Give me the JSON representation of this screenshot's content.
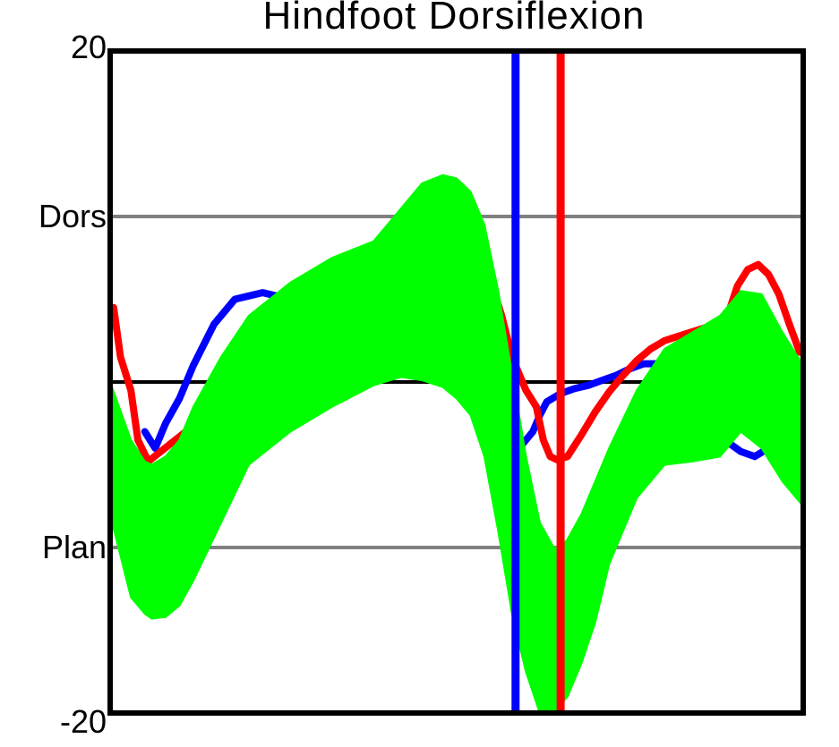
{
  "chart_data": {
    "type": "line",
    "title": "Hindfoot Dorsiflexion",
    "xlabel": "",
    "ylabel": "",
    "xlim": [
      0,
      100
    ],
    "ylim": [
      -20,
      20
    ],
    "y_ticks": [
      {
        "value": 20,
        "label": "20"
      },
      {
        "value": 10,
        "label": "Dors"
      },
      {
        "value": -10,
        "label": "Plan"
      },
      {
        "value": -20,
        "label": "-20"
      }
    ],
    "reference_lines": [
      {
        "y": 10,
        "color": "#808080"
      },
      {
        "y": 0,
        "color": "#000000"
      },
      {
        "y": -10,
        "color": "#808080"
      }
    ],
    "grid": false,
    "legend": "none",
    "colors": {
      "frame": "#000000",
      "series_blue": "#0000ff",
      "series_red": "#ff0000",
      "normal_band": "#00ff00",
      "reference_gray": "#808080"
    },
    "normal_band": {
      "x": [
        0,
        3,
        5,
        6,
        8,
        10,
        12,
        16,
        20,
        26,
        32,
        38,
        42,
        45,
        48,
        50,
        52,
        54,
        56,
        58,
        60,
        62,
        64,
        65,
        66,
        68,
        70,
        72,
        76,
        80,
        84,
        88,
        91,
        94,
        97,
        100
      ],
      "lower": [
        -8.0,
        -13.0,
        -14.0,
        -14.3,
        -14.2,
        -13.5,
        -12.0,
        -8.5,
        -5.0,
        -3.0,
        -1.5,
        -0.2,
        0.3,
        0.1,
        -0.3,
        -1.0,
        -2.0,
        -4.5,
        -9.0,
        -14.0,
        -17.5,
        -20.0,
        -20.0,
        -19.5,
        -19.0,
        -17.0,
        -14.5,
        -11.0,
        -7.0,
        -5.0,
        -4.8,
        -4.5,
        -3.0,
        -4.0,
        -6.0,
        -7.5
      ],
      "upper": [
        0.0,
        -3.5,
        -4.8,
        -5.0,
        -4.5,
        -3.5,
        -1.5,
        1.5,
        4.0,
        6.0,
        7.5,
        8.5,
        10.5,
        12.0,
        12.5,
        12.3,
        11.5,
        9.5,
        5.5,
        0.5,
        -4.5,
        -8.5,
        -10.0,
        -10.0,
        -9.5,
        -8.0,
        -6.0,
        -4.0,
        -0.5,
        2.0,
        3.0,
        4.0,
        5.5,
        5.3,
        3.0,
        1.0
      ]
    },
    "series": [
      {
        "color": "#0000ff",
        "x": [
          5.0,
          6.5,
          8.0,
          10.0,
          12.0,
          15.0,
          17.0,
          18.0,
          20.0,
          22.0,
          24.0,
          26.0,
          30.0,
          34.0,
          38.0,
          42.0,
          46.0,
          50.0,
          52.0,
          54.0,
          55.0,
          57.0,
          59.0,
          61.0,
          62.0,
          63.0,
          65.0,
          67.0,
          69.0,
          71.0,
          73.0,
          75.0,
          77.0,
          79.0,
          81.0,
          83.0,
          85.0,
          87.0,
          89.0,
          91.0,
          93.0,
          95.0,
          97.0,
          99.5
        ],
        "y": [
          -3.0,
          -4.0,
          -2.5,
          -1.0,
          1.0,
          3.5,
          4.5,
          5.0,
          5.2,
          5.4,
          5.2,
          5.0,
          4.8,
          4.3,
          3.8,
          3.3,
          2.8,
          2.4,
          1.8,
          0.5,
          -1.5,
          -3.0,
          -4.0,
          -3.0,
          -2.0,
          -1.2,
          -0.7,
          -0.4,
          -0.2,
          0.1,
          0.4,
          0.8,
          1.1,
          1.1,
          0.6,
          -0.5,
          -1.5,
          -2.8,
          -3.6,
          -4.2,
          -4.5,
          -4.0,
          -3.5,
          -3.2
        ]
      },
      {
        "color": "#ff0000",
        "x": [
          0.5,
          1.5,
          3.0,
          4.0,
          5.5,
          47.0,
          51.0,
          53.0,
          55.0,
          56.5,
          58.0,
          60.0,
          61.5,
          62.5,
          63.5,
          64.5,
          66.0,
          68.0,
          70.0,
          72.0,
          74.0,
          76.0,
          78.0,
          80.0,
          83.0,
          86.0,
          89.0,
          90.5,
          92.0,
          93.5,
          95.0,
          96.5,
          98.0,
          99.5
        ],
        "y": [
          4.5,
          1.5,
          -0.5,
          -3.5,
          -4.8,
          9.0,
          8.5,
          7.5,
          6.0,
          4.0,
          1.5,
          -0.5,
          -1.5,
          -3.5,
          -4.5,
          -4.7,
          -4.5,
          -3.2,
          -1.8,
          -0.6,
          0.4,
          1.3,
          2.0,
          2.5,
          2.9,
          3.3,
          3.9,
          5.8,
          6.8,
          7.1,
          6.5,
          5.3,
          3.5,
          1.8
        ]
      }
    ],
    "events": [
      {
        "x": 58.5,
        "color": "#0000ff"
      },
      {
        "x": 65.0,
        "color": "#ff0000"
      }
    ]
  }
}
